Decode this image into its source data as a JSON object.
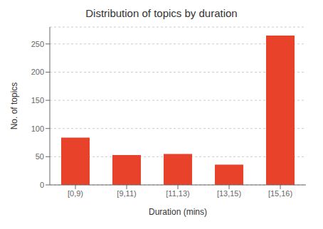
{
  "chart_data": {
    "type": "bar",
    "title": "Distribution of topics by duration",
    "categories": [
      "[0,9)",
      "[9,11)",
      "[11,13)",
      "[13,15)",
      "[15,16)"
    ],
    "values": [
      84,
      53,
      55,
      36,
      265
    ],
    "color": "#e8432a",
    "xlabel": "Duration (mins)",
    "ylabel": "No. of topics",
    "ylim": [
      0,
      280
    ],
    "yticks": [
      0,
      50,
      100,
      150,
      200,
      250
    ],
    "grid": true
  }
}
